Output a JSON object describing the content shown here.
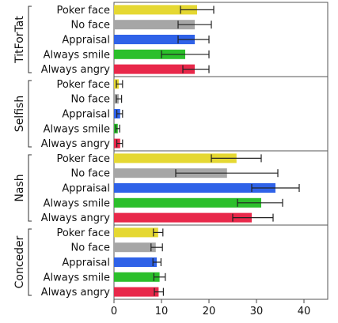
{
  "chart_data": {
    "type": "bar",
    "orientation": "horizontal",
    "xlim": [
      0,
      45
    ],
    "xticks": [
      "0",
      "10",
      "20",
      "30",
      "40"
    ],
    "xtick_values": [
      0,
      10,
      20,
      30,
      40
    ],
    "categories": [
      "Poker face",
      "No face",
      "Appraisal",
      "Always smile",
      "Always angry"
    ],
    "colors": [
      "#e5d832",
      "#a6a6a6",
      "#2f62e8",
      "#2bbf2b",
      "#e8284a"
    ],
    "groups": [
      {
        "name": "TitForTat",
        "values": [
          17.5,
          17,
          17,
          15,
          17
        ],
        "errors": [
          [
            14,
            21
          ],
          [
            13.5,
            20.5
          ],
          [
            13.5,
            20
          ],
          [
            10,
            20
          ],
          [
            14.5,
            20
          ]
        ]
      },
      {
        "name": "Selfish",
        "values": [
          1,
          1,
          1.3,
          0.8,
          1.3
        ],
        "errors": [
          [
            0.5,
            1.8
          ],
          [
            0.5,
            1.6
          ],
          [
            0.6,
            1.8
          ],
          [
            0.4,
            1.2
          ],
          [
            0.6,
            1.8
          ]
        ]
      },
      {
        "name": "Nash",
        "values": [
          25.8,
          23.8,
          34,
          31,
          29
        ],
        "errors": [
          [
            20.5,
            31
          ],
          [
            13,
            34.5
          ],
          [
            29,
            39
          ],
          [
            26,
            35.5
          ],
          [
            25,
            33.5
          ]
        ]
      },
      {
        "name": "Conceder",
        "values": [
          9.3,
          8.8,
          9,
          9.6,
          9.4
        ],
        "errors": [
          [
            8.3,
            10.3
          ],
          [
            7.8,
            10.2
          ],
          [
            8.2,
            9.9
          ],
          [
            8.4,
            10.8
          ],
          [
            8.5,
            10.4
          ]
        ]
      }
    ]
  }
}
